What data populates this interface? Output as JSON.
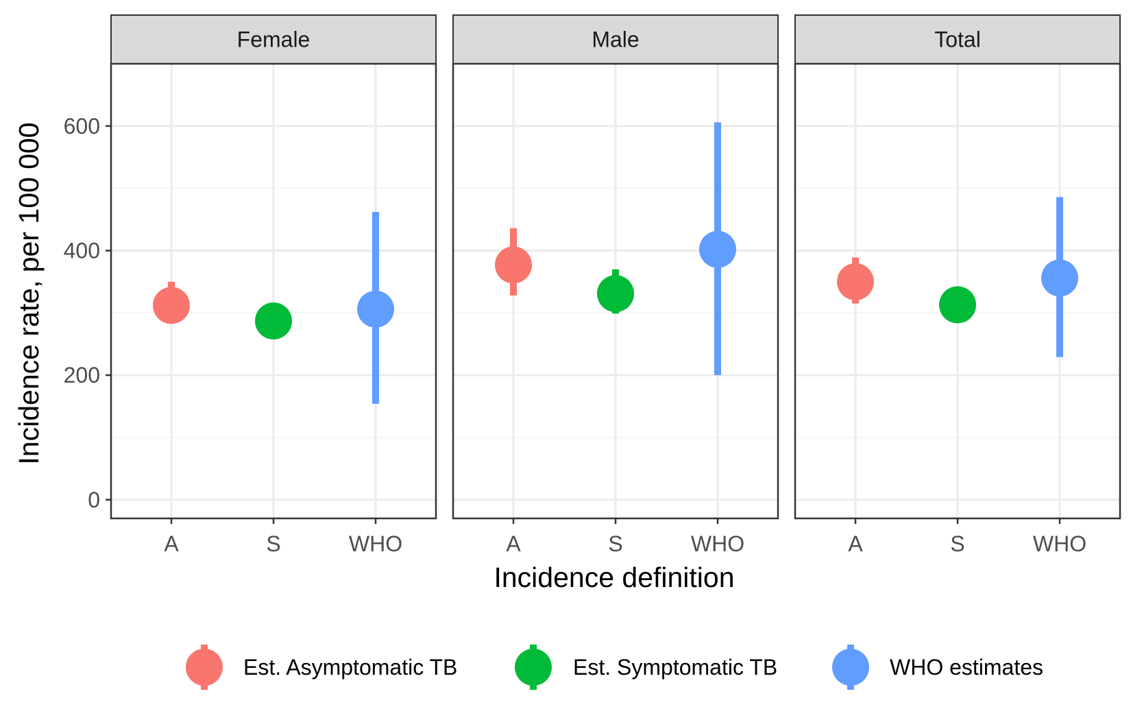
{
  "chart_data": {
    "type": "scatter",
    "subtype": "point-range faceted by sex",
    "xlabel": "Incidence definition",
    "ylabel": "Incidence rate, per 100 000",
    "ylim": [
      -30,
      700
    ],
    "yticks": [
      0,
      200,
      400,
      600
    ],
    "categories": [
      "A",
      "S",
      "WHO"
    ],
    "grid": true,
    "legend_position": "bottom",
    "legend": [
      {
        "label": "Est. Asymptomatic TB",
        "color": "#F8766D"
      },
      {
        "label": "Est. Symptomatic TB",
        "color": "#00BA38"
      },
      {
        "label": "WHO estimates",
        "color": "#619CFF"
      }
    ],
    "facets": [
      {
        "label": "Female",
        "points": [
          {
            "category": "A",
            "series": "Est. Asymptomatic TB",
            "value": 312,
            "lower": 285,
            "upper": 350
          },
          {
            "category": "S",
            "series": "Est. Symptomatic TB",
            "value": 287,
            "lower": 287,
            "upper": 287
          },
          {
            "category": "WHO",
            "series": "WHO estimates",
            "value": 306,
            "lower": 154,
            "upper": 462
          }
        ]
      },
      {
        "label": "Male",
        "points": [
          {
            "category": "A",
            "series": "Est. Asymptomatic TB",
            "value": 377,
            "lower": 328,
            "upper": 436
          },
          {
            "category": "S",
            "series": "Est. Symptomatic TB",
            "value": 331,
            "lower": 299,
            "upper": 370
          },
          {
            "category": "WHO",
            "series": "WHO estimates",
            "value": 402,
            "lower": 200,
            "upper": 606
          }
        ]
      },
      {
        "label": "Total",
        "points": [
          {
            "category": "A",
            "series": "Est. Asymptomatic TB",
            "value": 350,
            "lower": 315,
            "upper": 389
          },
          {
            "category": "S",
            "series": "Est. Symptomatic TB",
            "value": 313,
            "lower": 313,
            "upper": 313
          },
          {
            "category": "WHO",
            "series": "WHO estimates",
            "value": 356,
            "lower": 229,
            "upper": 486
          }
        ]
      }
    ]
  }
}
